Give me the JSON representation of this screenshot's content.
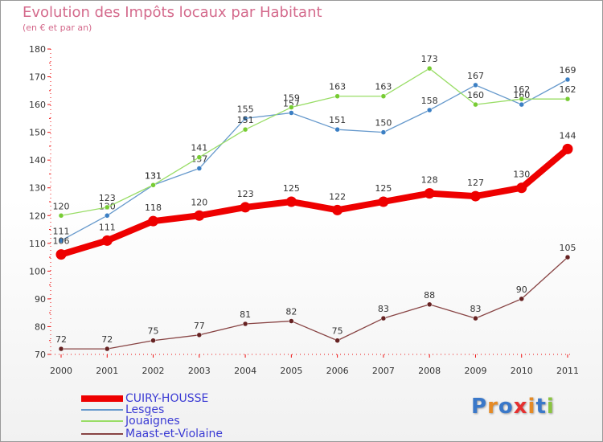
{
  "title": "Evolution des Impôts locaux par Habitant",
  "subtitle": "(en € et par an)",
  "logo": {
    "text": "Proxiti",
    "letter_colors": [
      "#3a78c9",
      "#e58a25",
      "#3a78c9",
      "#e53030",
      "#e58a25",
      "#3a78c9",
      "#8ac440"
    ]
  },
  "chart_data": {
    "type": "line",
    "x": [
      "2000",
      "2001",
      "2002",
      "2003",
      "2004",
      "2005",
      "2006",
      "2007",
      "2008",
      "2009",
      "2010",
      "2011"
    ],
    "ylim": [
      70,
      180
    ],
    "yticks": [
      70,
      80,
      90,
      100,
      110,
      120,
      130,
      140,
      150,
      160,
      170,
      180
    ],
    "grid": false,
    "legend_position": "bottom-left",
    "series": [
      {
        "name": "Lesges",
        "color": "#6699cc",
        "marker_color": "#3b7fc4",
        "width": "thin",
        "values": [
          111,
          120,
          131,
          137,
          155,
          157,
          151,
          150,
          158,
          167,
          160,
          169
        ],
        "labels": [
          "111",
          "120",
          "131",
          "137",
          "155",
          "157",
          "151",
          "150",
          "158",
          "167",
          "160",
          "169"
        ]
      },
      {
        "name": "Jouaignes",
        "color": "#99dd66",
        "marker_color": "#77cc33",
        "width": "thin",
        "values": [
          120,
          123,
          131,
          141,
          151,
          159,
          163,
          163,
          173,
          160,
          162,
          162
        ],
        "labels": [
          "120",
          "123",
          "131",
          "141",
          "151",
          "159",
          "163",
          "163",
          "173",
          "160",
          "162",
          "162"
        ]
      },
      {
        "name": "Maast-et-Violaine",
        "color": "#884444",
        "marker_color": "#662222",
        "width": "thin",
        "values": [
          72,
          72,
          75,
          77,
          81,
          82,
          75,
          83,
          88,
          83,
          90,
          105
        ],
        "labels": [
          "72",
          "72",
          "75",
          "77",
          "81",
          "82",
          "75",
          "83",
          "88",
          "83",
          "90",
          "105"
        ]
      },
      {
        "name": "CUIRY-HOUSSE",
        "color": "#ee0000",
        "marker_color": "#ee0000",
        "width": "thick",
        "values": [
          106,
          111,
          118,
          120,
          123,
          125,
          122,
          125,
          128,
          127,
          130,
          144
        ],
        "labels": [
          "106",
          "111",
          "118",
          "120",
          "123",
          "125",
          "122",
          "125",
          "128",
          "127",
          "130",
          "144"
        ]
      }
    ],
    "legend": [
      "CUIRY-HOUSSE",
      "Lesges",
      "Jouaignes",
      "Maast-et-Violaine"
    ]
  }
}
